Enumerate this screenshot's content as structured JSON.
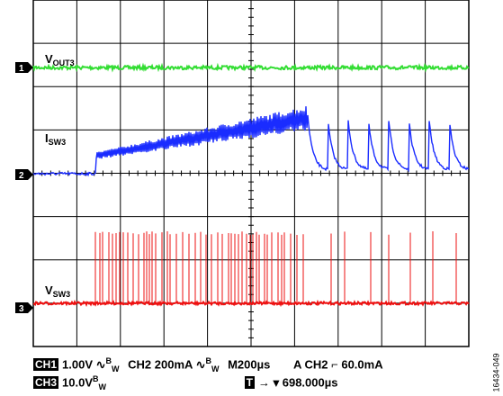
{
  "chart_data": {
    "type": "line",
    "series": [
      {
        "name": "VOUT3",
        "marker": "1",
        "color": "#33dd33",
        "level_div": 1.0
      },
      {
        "name": "ISW3",
        "marker": "2",
        "color": "#1a2cff",
        "level_div": 4.0
      },
      {
        "name": "VSW3",
        "marker": "3",
        "color": "#ee1111",
        "level_div": 7.0
      }
    ],
    "labels": {
      "vout3": {
        "main": "V",
        "sub": "OUT3"
      },
      "isw3": {
        "main": "I",
        "sub": "SW3"
      },
      "vsw3": {
        "main": "V",
        "sub": "SW3"
      }
    },
    "grid": {
      "divisions_x": 10,
      "divisions_y": 8,
      "visible": true
    }
  },
  "settings": {
    "ch1_tag": "CH1",
    "ch1_scale": "1.00V",
    "bw_symbol": "∿",
    "bw_label": "B",
    "bw_sub": "W",
    "ch2_scale": "CH2 200mA",
    "timebase": "M200µs",
    "trigger": "A  CH2",
    "trigger_edge": "⌐",
    "trigger_level": "60.0mA",
    "ch3_tag": "CH3",
    "ch3_scale": "10.0V",
    "t_tag": "T",
    "t_arrow": "→ ▾",
    "t_position": "698.000µs"
  },
  "figure_id": "16434-049"
}
